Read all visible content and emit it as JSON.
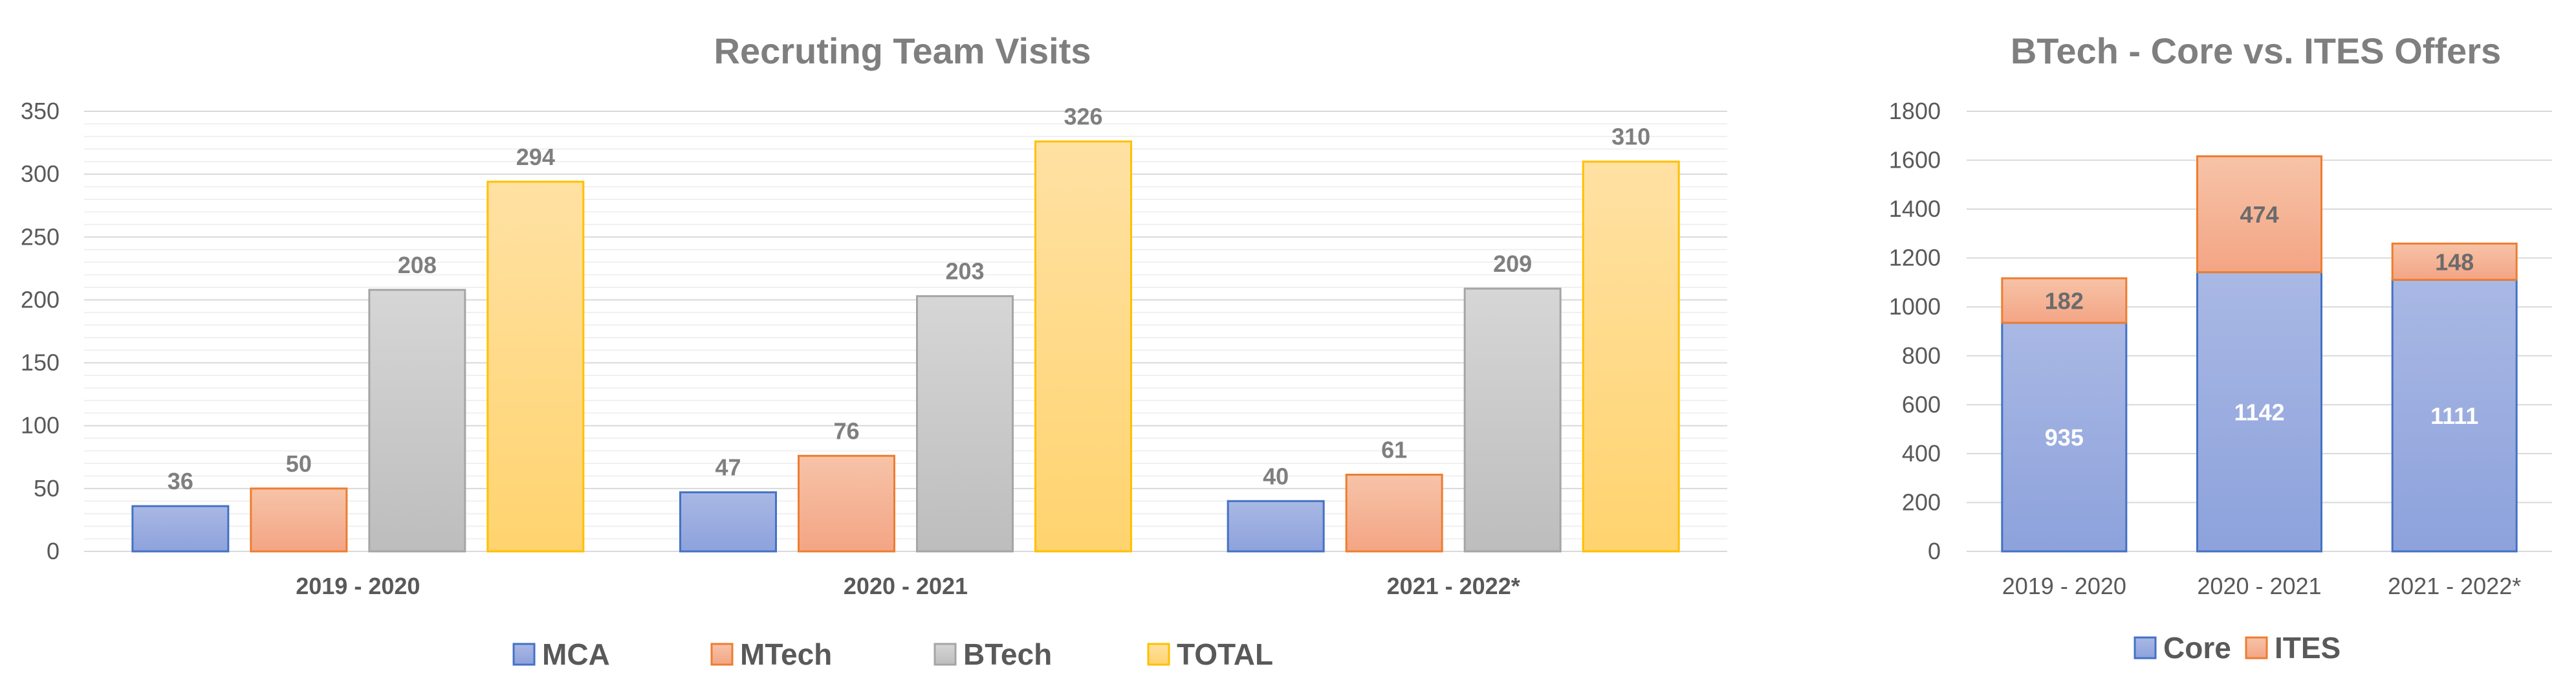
{
  "chart_data": [
    {
      "type": "bar",
      "title": "Recruting Team Visits",
      "categories": [
        "2019 - 2020",
        "2020 - 2021",
        "2021 - 2022*"
      ],
      "series": [
        {
          "name": "MCA",
          "values": [
            36,
            47,
            40
          ]
        },
        {
          "name": "MTech",
          "values": [
            50,
            76,
            61
          ]
        },
        {
          "name": "BTech",
          "values": [
            208,
            203,
            209
          ]
        },
        {
          "name": "TOTAL",
          "values": [
            294,
            326,
            310
          ]
        }
      ],
      "ylim": [
        0,
        350
      ],
      "yticks": [
        0,
        50,
        100,
        150,
        200,
        250,
        300,
        350
      ],
      "grid": true,
      "legend": "bottom",
      "colors": {
        "MCA": [
          "#a9b8e4",
          "#8da2dc",
          "#4472c4"
        ],
        "MTech": [
          "#f7c3a8",
          "#f3a584",
          "#ed7d31"
        ],
        "BTech": [
          "#d6d6d6",
          "#bdbdbd",
          "#a5a5a5"
        ],
        "TOTAL": [
          "#ffe1a3",
          "#ffd36e",
          "#ffc000"
        ]
      }
    },
    {
      "type": "bar",
      "stacked": true,
      "title": "BTech - Core vs. ITES Offers",
      "categories": [
        "2019 - 2020",
        "2020 - 2021",
        "2021 - 2022*"
      ],
      "series": [
        {
          "name": "Core",
          "values": [
            935,
            1142,
            1111
          ]
        },
        {
          "name": "ITES",
          "values": [
            182,
            474,
            148
          ]
        }
      ],
      "ylim": [
        0,
        1800
      ],
      "yticks": [
        0,
        200,
        400,
        600,
        800,
        1000,
        1200,
        1400,
        1600,
        1800
      ],
      "grid": true,
      "legend": "bottom",
      "colors": {
        "Core": [
          "#a9b8e4",
          "#8da2dc",
          "#4472c4"
        ],
        "ITES": [
          "#f7c3a8",
          "#f3a584",
          "#ed7d31"
        ]
      }
    }
  ]
}
